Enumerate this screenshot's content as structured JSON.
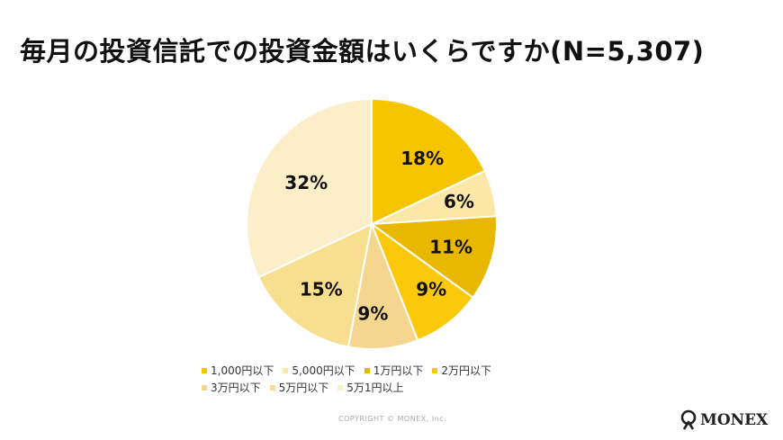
{
  "chart_data": {
    "type": "pie",
    "title": "毎月の投資信託での投資金額はいくらですか(N=5,307)",
    "categories": [
      "1,000円以下",
      "5,000円以下",
      "1万円以下",
      "2万円以下",
      "3万円以下",
      "5万円以下",
      "5万1円以上"
    ],
    "values": [
      18,
      6,
      11,
      9,
      9,
      15,
      32
    ],
    "value_labels": [
      "18%",
      "6%",
      "11%",
      "9%",
      "9%",
      "15%",
      "32%"
    ],
    "colors": [
      "#f7c500",
      "#fbe7a6",
      "#e8b800",
      "#fbc90a",
      "#f5d68e",
      "#f8df90",
      "#fceec8"
    ],
    "legend_placement": "bottom",
    "start_angle": "12 o'clock, clockwise"
  },
  "footer": {
    "copyright": "COPYRIGHT © MONEX, Inc.",
    "logo_text": "MONEX"
  }
}
